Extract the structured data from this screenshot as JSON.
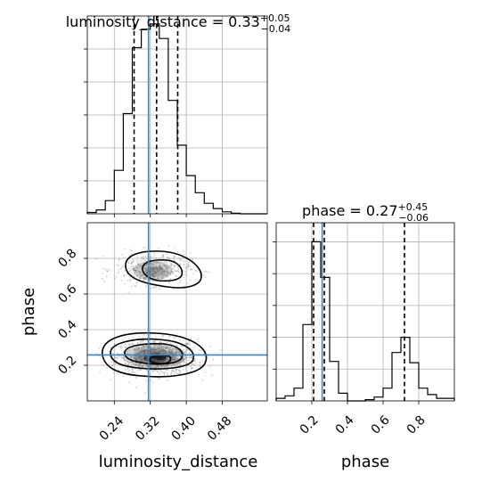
{
  "chart_data": [
    {
      "type": "histogram",
      "panel": "luminosity_distance marginal",
      "title_param": "luminosity_distance",
      "title_value": "0.33",
      "title_plus": "+0.05",
      "title_minus": "−0.04",
      "xlim": [
        0.18,
        0.58
      ],
      "bin_edges": [
        0.18,
        0.2,
        0.22,
        0.24,
        0.26,
        0.28,
        0.3,
        0.32,
        0.34,
        0.36,
        0.38,
        0.4,
        0.42,
        0.44,
        0.46,
        0.48,
        0.5,
        0.52,
        0.54,
        0.56,
        0.58
      ],
      "counts": [
        1,
        3,
        10,
        33,
        76,
        126,
        140,
        144,
        133,
        86,
        52,
        29,
        16,
        8,
        4,
        1.5,
        0.5,
        0,
        0,
        0
      ],
      "quantiles": [
        0.284,
        0.334,
        0.381
      ],
      "truth": 0.316
    },
    {
      "type": "scatter+contour",
      "panel": "luminosity_distance vs phase",
      "xlabel": "luminosity_distance",
      "ylabel": "phase",
      "xlim": [
        0.18,
        0.58
      ],
      "ylim": [
        0.0,
        1.0
      ],
      "xticks": [
        "0.24",
        "0.32",
        "0.40",
        "0.48"
      ],
      "yticks": [
        "0.2",
        "0.4",
        "0.6",
        "0.8"
      ],
      "modes": [
        {
          "center": [
            0.327,
            0.25
          ],
          "peak": [
            0.33,
            0.24
          ]
        },
        {
          "center": [
            0.326,
            0.73
          ]
        }
      ],
      "truth": [
        0.316,
        0.258
      ]
    },
    {
      "type": "histogram",
      "panel": "phase marginal",
      "title_param": "phase",
      "title_value": "0.27",
      "title_plus": "+0.45",
      "title_minus": "−0.06",
      "xlabel": "phase",
      "xlim": [
        0.0,
        1.0
      ],
      "xticks": [
        "0.2",
        "0.4",
        "0.6",
        "0.8"
      ],
      "bin_edges": [
        0.0,
        0.05,
        0.1,
        0.15,
        0.2,
        0.25,
        0.3,
        0.35,
        0.4,
        0.45,
        0.5,
        0.55,
        0.6,
        0.65,
        0.7,
        0.75,
        0.8,
        0.85,
        0.9,
        0.95,
        1.0
      ],
      "counts": [
        2,
        4,
        10,
        60,
        125,
        97,
        31,
        6,
        0,
        0,
        1,
        3,
        10,
        38,
        50,
        30,
        10,
        5,
        2,
        2
      ],
      "quantiles": [
        0.21,
        0.27,
        0.72
      ],
      "truth": 0.258
    }
  ]
}
